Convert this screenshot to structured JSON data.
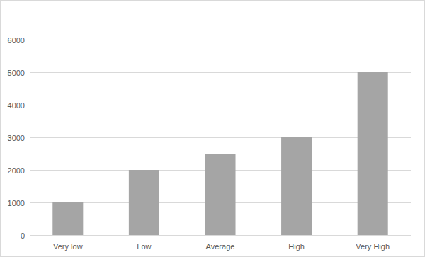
{
  "chart_data": {
    "type": "bar",
    "categories": [
      "Very low",
      "Low",
      "Average",
      "High",
      "Very High"
    ],
    "values": [
      1000,
      2000,
      2500,
      3000,
      5000
    ],
    "color": "#a5a5a5",
    "ylim": [
      0,
      6000
    ],
    "yticks": [
      0,
      1000,
      2000,
      3000,
      4000,
      5000,
      6000
    ],
    "grid": true
  }
}
